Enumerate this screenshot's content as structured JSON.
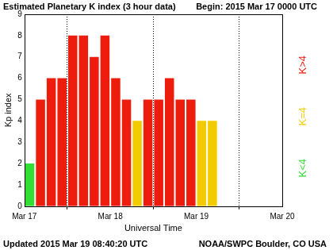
{
  "chart_data": {
    "type": "bar",
    "title": "Estimated Planetary K index (3 hour data)",
    "subtitle": "Begin: 2015 Mar 17 0000 UTC",
    "x_label": "Universal Time",
    "y_label": "Kp index",
    "footer": [
      "Updated 2015 Mar 19 08:40:20 UTC",
      "NOAA/SWPC Boulder, CO USA"
    ],
    "x": [
      1.5,
      4.5,
      7.5,
      10.5,
      13.5,
      16.5,
      19.5,
      22.5,
      25.5,
      28.5,
      31.5,
      34.5,
      37.5,
      40.5,
      43.5,
      46.5,
      49.5,
      52.5
    ],
    "values": [
      2,
      5,
      6,
      6,
      8,
      8,
      7,
      8,
      6,
      5,
      4,
      5,
      5,
      6,
      5,
      5,
      4,
      4
    ],
    "colors": [
      "#33dd33",
      "#ee1c0c",
      "#ee1c0c",
      "#ee1c0c",
      "#ee1c0c",
      "#ee1c0c",
      "#ee1c0c",
      "#ee1c0c",
      "#ee1c0c",
      "#ee1c0c",
      "#f2cc00",
      "#ee1c0c",
      "#ee1c0c",
      "#ee1c0c",
      "#ee1c0c",
      "#ee1c0c",
      "#f2cc00",
      "#f2cc00"
    ],
    "xlim": [
      0,
      72
    ],
    "xticks": [
      {
        "value": 0,
        "label": "Mar 17"
      },
      {
        "value": 24,
        "label": "Mar 18"
      },
      {
        "value": 48,
        "label": "Mar 19"
      },
      {
        "value": 72,
        "label": "Mar 20"
      }
    ],
    "ylim": [
      0,
      9
    ],
    "yticks": [
      0,
      1,
      2,
      3,
      4,
      5,
      6,
      7,
      8,
      9
    ],
    "grid": "x",
    "color_key": [
      {
        "label": "K<4",
        "color": "#33dd33"
      },
      {
        "label": "K=4",
        "color": "#f2cc00"
      },
      {
        "label": "K>4",
        "color": "#ee1c0c"
      }
    ]
  }
}
